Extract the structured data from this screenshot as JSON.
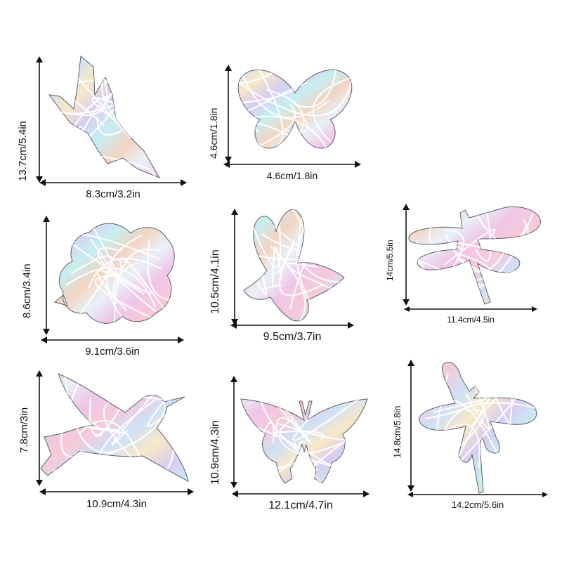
{
  "colors": {
    "arrow": "#111111",
    "iridescent": [
      "#f6c9d8",
      "#cfe0f7",
      "#f7e8c6",
      "#d8cdf3",
      "#c6eef0",
      "#f3d4c2",
      "#e8f0f8",
      "#f0c6e6"
    ],
    "line": "#ffffff",
    "edge": "#5a5f6a"
  },
  "stickers": [
    {
      "shape": "hummingbird-up-icon",
      "width_label": "8.3cm/3.2in",
      "height_label": "13.7cm/5.4in"
    },
    {
      "shape": "butterfly-icon",
      "width_label": "4.6cm/1.8in",
      "height_label": "4.6cm/1.8in"
    },
    {
      "shape": "flower-icon",
      "width_label": "9.1cm/3.6in",
      "height_label": "8.6cm/3.4in"
    },
    {
      "shape": "butterfly-side-icon",
      "width_label": "9.5cm/3.7in",
      "height_label": "10.5cm/4.1in"
    },
    {
      "shape": "dragonfly-icon",
      "width_label": "11.4cm/4.5in",
      "height_label": "14cm/5.5in"
    },
    {
      "shape": "hummingbird-icon",
      "width_label": "10.9cm/4.3in",
      "height_label": "7.8cm/3in"
    },
    {
      "shape": "butterfly-open-icon",
      "width_label": "12.1cm/4.7in",
      "height_label": "10.9cm/4.3in"
    },
    {
      "shape": "dragonfly-angled-icon",
      "width_label": "14.2cm/5.6in",
      "height_label": "14.8cm/5.8in"
    }
  ]
}
